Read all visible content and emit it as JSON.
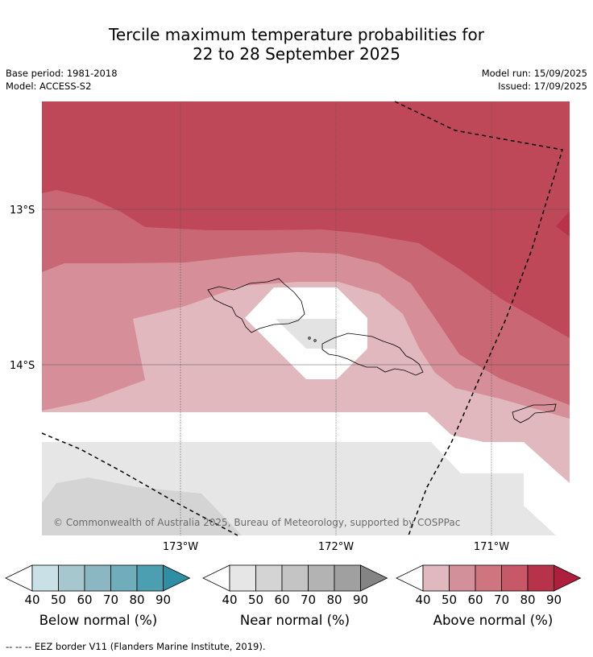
{
  "title": {
    "line1": "Tercile maximum temperature probabilities for",
    "line2": "22 to 28 September 2025"
  },
  "meta": {
    "base_period": "Base period: 1981-2018",
    "model": "Model: ACCESS-S2",
    "model_run": "Model run: 15/09/2025",
    "issued": "Issued: 17/09/2025"
  },
  "map": {
    "lat_labels": [
      "13°S",
      "14°S"
    ],
    "lon_labels": [
      "173°W",
      "172°W",
      "171°W"
    ],
    "copyright": "© Commonwealth of Australia 2025, Bureau of Meteorology, supported by COSPPac"
  },
  "legends": [
    {
      "name": "below",
      "label": "Below normal (%)",
      "ticks": [
        "40",
        "50",
        "60",
        "70",
        "80",
        "90"
      ],
      "colors": [
        "#c8e0e6",
        "#a6c7cd",
        "#8bb7c2",
        "#6fadbb",
        "#4b9fb1",
        "#2e8fa4"
      ]
    },
    {
      "name": "near",
      "label": "Near normal (%)",
      "ticks": [
        "40",
        "50",
        "60",
        "70",
        "80",
        "90"
      ],
      "colors": [
        "#e6e6e6",
        "#d4d4d4",
        "#c4c4c4",
        "#b3b3b3",
        "#a0a0a0",
        "#848484"
      ]
    },
    {
      "name": "above",
      "label": "Above normal (%)",
      "ticks": [
        "40",
        "50",
        "60",
        "70",
        "80",
        "90"
      ],
      "colors": [
        "#e1b8bf",
        "#d4909a",
        "#ce7580",
        "#c65868",
        "#b73349",
        "#ad1f3d"
      ]
    }
  ],
  "footer": "--  --  -- EEZ border V11 (Flanders Marine Institute, 2019)."
}
